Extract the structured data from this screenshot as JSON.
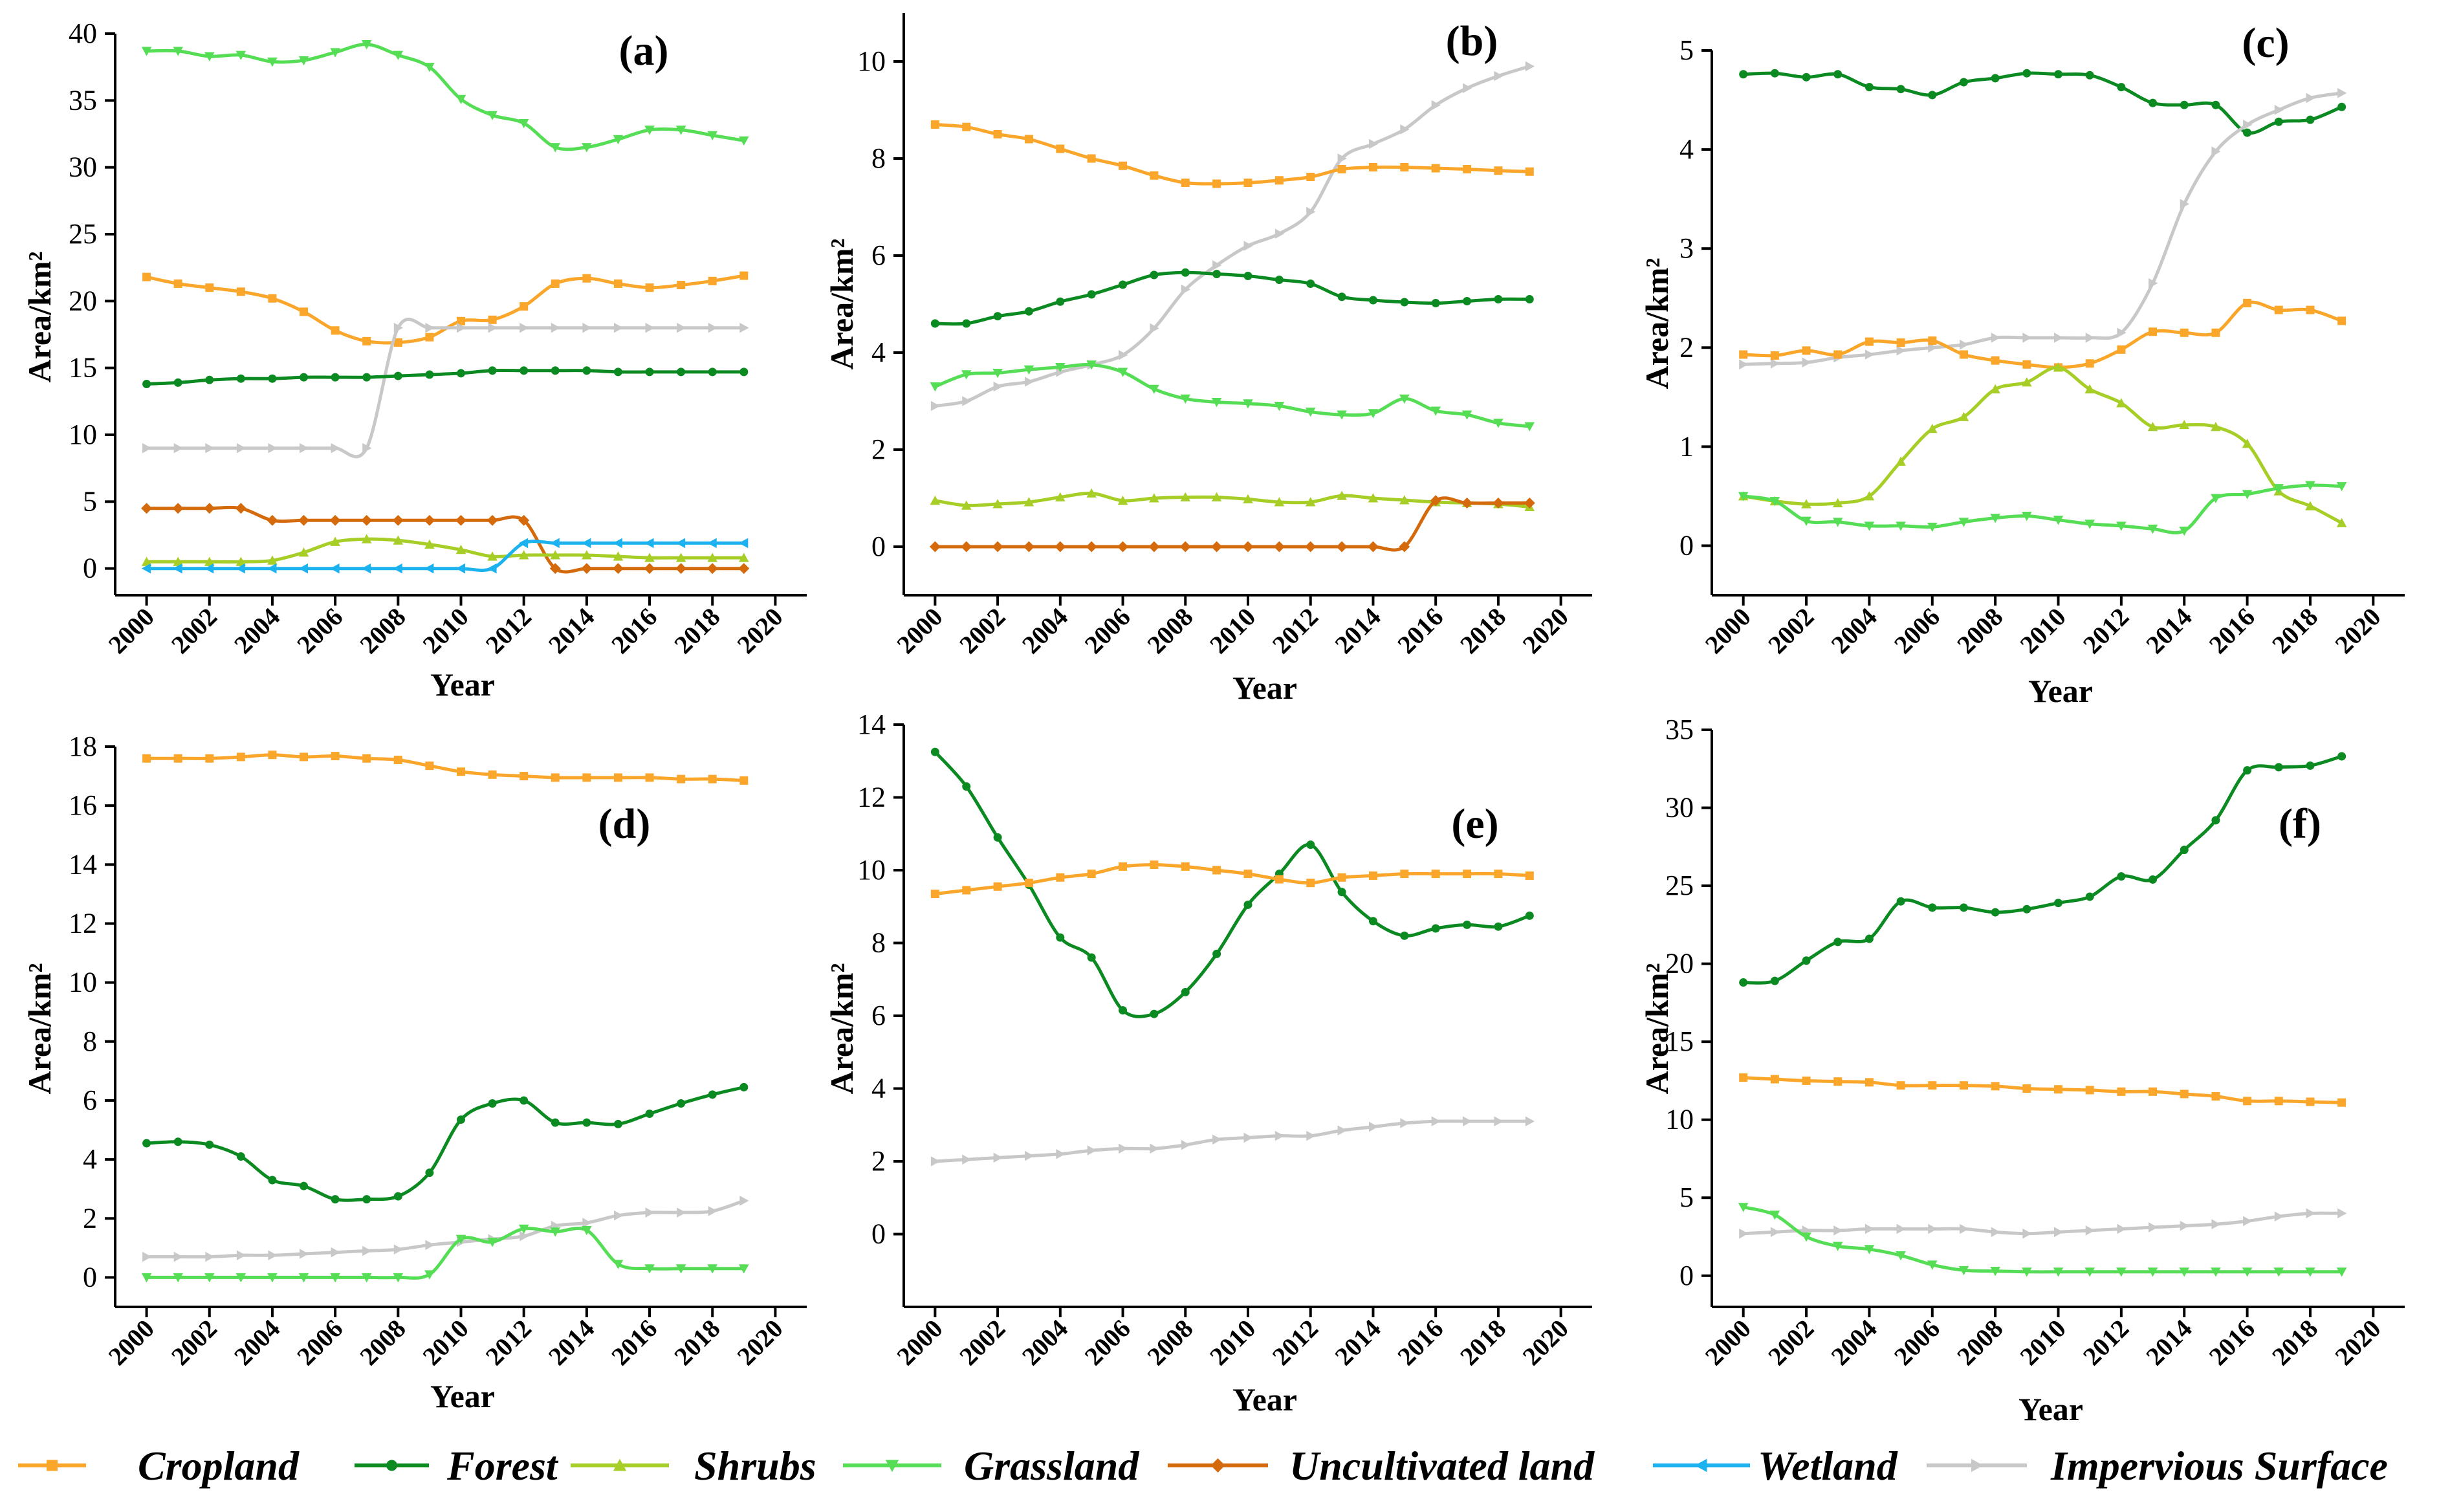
{
  "colors": {
    "Cropland": "#F9A62A",
    "Forest": "#0C8A22",
    "Shrubs": "#A7CE27",
    "Grassland": "#55DE55",
    "Uncultivated land": "#D46A0C",
    "Wetland": "#1CB2EF",
    "Impervious Surface": "#C8C8C8"
  },
  "legend": {
    "items": [
      "Cropland",
      "Forest",
      "Shrubs",
      "Grassland",
      "Uncultivated land",
      "Wetland",
      "Impervious Surface"
    ],
    "placement": "bottom"
  },
  "chart_data": [
    {
      "type": "line",
      "panel_label": "(a)",
      "xlabel": "Year",
      "ylabel": "Area/km²",
      "xlim": [
        1999,
        2021
      ],
      "ylim": [
        -2,
        40
      ],
      "xticks": [
        2000,
        2002,
        2004,
        2006,
        2008,
        2010,
        2012,
        2014,
        2016,
        2018,
        2020
      ],
      "yticks": [
        0,
        5,
        10,
        15,
        20,
        25,
        30,
        35,
        40
      ],
      "x": [
        2000,
        2001,
        2002,
        2003,
        2004,
        2005,
        2006,
        2007,
        2008,
        2009,
        2010,
        2011,
        2012,
        2013,
        2014,
        2015,
        2016,
        2017,
        2018,
        2019
      ],
      "series": [
        {
          "name": "Grassland",
          "values": [
            38.7,
            38.7,
            38.3,
            38.4,
            37.9,
            38.0,
            38.6,
            39.2,
            38.4,
            37.5,
            35.1,
            33.9,
            33.3,
            31.5,
            31.5,
            32.1,
            32.8,
            32.8,
            32.4,
            32.0
          ]
        },
        {
          "name": "Cropland",
          "values": [
            21.8,
            21.3,
            21.0,
            20.7,
            20.2,
            19.2,
            17.8,
            17.0,
            16.9,
            17.3,
            18.5,
            18.6,
            19.6,
            21.3,
            21.7,
            21.3,
            21.0,
            21.2,
            21.5,
            21.9
          ]
        },
        {
          "name": "Impervious Surface",
          "values": [
            9.0,
            9.0,
            9.0,
            9.0,
            9.0,
            9.0,
            9.0,
            9.0,
            18.0,
            18.0,
            18.0,
            18.0,
            18.0,
            18.0,
            18.0,
            18.0,
            18.0,
            18.0,
            18.0,
            18.0
          ]
        },
        {
          "name": "Forest",
          "values": [
            13.8,
            13.9,
            14.1,
            14.2,
            14.2,
            14.3,
            14.3,
            14.3,
            14.4,
            14.5,
            14.6,
            14.8,
            14.8,
            14.8,
            14.8,
            14.7,
            14.7,
            14.7,
            14.7,
            14.7
          ]
        },
        {
          "name": "Uncultivated land",
          "values": [
            4.5,
            4.5,
            4.5,
            4.5,
            3.6,
            3.6,
            3.6,
            3.6,
            3.6,
            3.6,
            3.6,
            3.6,
            3.6,
            0.0,
            0.0,
            0.0,
            0.0,
            0.0,
            0.0,
            0.0
          ]
        },
        {
          "name": "Shrubs",
          "values": [
            0.5,
            0.5,
            0.5,
            0.5,
            0.6,
            1.2,
            2.0,
            2.2,
            2.1,
            1.8,
            1.4,
            0.9,
            1.0,
            1.0,
            1.0,
            0.9,
            0.8,
            0.8,
            0.8,
            0.8
          ]
        },
        {
          "name": "Wetland",
          "values": [
            0.0,
            0.0,
            0.0,
            0.0,
            0.0,
            0.0,
            0.0,
            0.0,
            0.0,
            0.0,
            0.0,
            0.0,
            1.9,
            1.9,
            1.9,
            1.9,
            1.9,
            1.9,
            1.9,
            1.9
          ]
        }
      ]
    },
    {
      "type": "line",
      "panel_label": "(b)",
      "xlabel": "Year",
      "ylabel": "Area/km²",
      "xlim": [
        1999,
        2021
      ],
      "ylim": [
        -1,
        11
      ],
      "xticks": [
        2000,
        2002,
        2004,
        2006,
        2008,
        2010,
        2012,
        2014,
        2016,
        2018,
        2020
      ],
      "yticks": [
        0,
        2,
        4,
        6,
        8,
        10
      ],
      "x": [
        2000,
        2001,
        2002,
        2003,
        2004,
        2005,
        2006,
        2007,
        2008,
        2009,
        2010,
        2011,
        2012,
        2013,
        2014,
        2015,
        2016,
        2017,
        2018,
        2019
      ],
      "series": [
        {
          "name": "Impervious Surface",
          "values": [
            2.9,
            3.0,
            3.3,
            3.4,
            3.6,
            3.75,
            3.95,
            4.5,
            5.3,
            5.8,
            6.2,
            6.45,
            6.9,
            8.0,
            8.3,
            8.6,
            9.1,
            9.45,
            9.7,
            9.9
          ]
        },
        {
          "name": "Cropland",
          "values": [
            8.7,
            8.65,
            8.5,
            8.4,
            8.2,
            8.0,
            7.85,
            7.65,
            7.5,
            7.48,
            7.5,
            7.55,
            7.62,
            7.78,
            7.82,
            7.82,
            7.8,
            7.78,
            7.75,
            7.73
          ]
        },
        {
          "name": "Forest",
          "values": [
            4.6,
            4.6,
            4.75,
            4.85,
            5.05,
            5.2,
            5.4,
            5.6,
            5.65,
            5.62,
            5.58,
            5.5,
            5.42,
            5.15,
            5.08,
            5.04,
            5.02,
            5.06,
            5.1,
            5.1
          ]
        },
        {
          "name": "Grassland",
          "values": [
            3.3,
            3.55,
            3.58,
            3.65,
            3.7,
            3.75,
            3.6,
            3.25,
            3.05,
            2.98,
            2.95,
            2.9,
            2.78,
            2.72,
            2.75,
            3.05,
            2.8,
            2.72,
            2.55,
            2.48
          ]
        },
        {
          "name": "Shrubs",
          "values": [
            0.95,
            0.85,
            0.88,
            0.92,
            1.02,
            1.1,
            0.95,
            1.0,
            1.02,
            1.02,
            0.98,
            0.92,
            0.92,
            1.05,
            1.0,
            0.96,
            0.92,
            0.9,
            0.88,
            0.82
          ]
        },
        {
          "name": "Uncultivated land",
          "values": [
            0.0,
            0.0,
            0.0,
            0.0,
            0.0,
            0.0,
            0.0,
            0.0,
            0.0,
            0.0,
            0.0,
            0.0,
            0.0,
            0.0,
            0.0,
            0.0,
            0.95,
            0.9,
            0.9,
            0.9
          ]
        }
      ]
    },
    {
      "type": "line",
      "panel_label": "(c)",
      "xlabel": "Year",
      "ylabel": "Area/km²",
      "xlim": [
        1999,
        2021
      ],
      "ylim": [
        -0.5,
        5
      ],
      "xticks": [
        2000,
        2002,
        2004,
        2006,
        2008,
        2010,
        2012,
        2014,
        2016,
        2018,
        2020
      ],
      "yticks": [
        0,
        1,
        2,
        3,
        4,
        5
      ],
      "x": [
        2000,
        2001,
        2002,
        2003,
        2004,
        2005,
        2006,
        2007,
        2008,
        2009,
        2010,
        2011,
        2012,
        2013,
        2014,
        2015,
        2016,
        2017,
        2018,
        2019
      ],
      "series": [
        {
          "name": "Forest",
          "values": [
            4.76,
            4.77,
            4.73,
            4.76,
            4.63,
            4.61,
            4.55,
            4.68,
            4.72,
            4.77,
            4.76,
            4.75,
            4.63,
            4.47,
            4.45,
            4.45,
            4.17,
            4.28,
            4.3,
            4.43
          ]
        },
        {
          "name": "Impervious Surface",
          "values": [
            1.83,
            1.84,
            1.85,
            1.9,
            1.93,
            1.97,
            2.0,
            2.03,
            2.1,
            2.1,
            2.1,
            2.1,
            2.15,
            2.65,
            3.45,
            3.98,
            4.25,
            4.4,
            4.52,
            4.57
          ]
        },
        {
          "name": "Cropland",
          "values": [
            1.93,
            1.92,
            1.97,
            1.93,
            2.06,
            2.05,
            2.07,
            1.93,
            1.87,
            1.83,
            1.8,
            1.84,
            1.98,
            2.16,
            2.15,
            2.15,
            2.45,
            2.38,
            2.38,
            2.27
          ]
        },
        {
          "name": "Shrubs",
          "values": [
            0.5,
            0.45,
            0.42,
            0.43,
            0.5,
            0.85,
            1.18,
            1.3,
            1.58,
            1.65,
            1.8,
            1.58,
            1.44,
            1.2,
            1.22,
            1.2,
            1.03,
            0.55,
            0.4,
            0.23
          ]
        },
        {
          "name": "Grassland",
          "values": [
            0.5,
            0.45,
            0.25,
            0.24,
            0.2,
            0.2,
            0.19,
            0.24,
            0.28,
            0.3,
            0.26,
            0.22,
            0.2,
            0.17,
            0.15,
            0.48,
            0.52,
            0.58,
            0.61,
            0.6
          ]
        }
      ]
    },
    {
      "type": "line",
      "panel_label": "(d)",
      "xlabel": "Year",
      "ylabel": "Area/km²",
      "xlim": [
        1999,
        2021
      ],
      "ylim": [
        -1,
        18
      ],
      "xticks": [
        2000,
        2002,
        2004,
        2006,
        2008,
        2010,
        2012,
        2014,
        2016,
        2018,
        2020
      ],
      "yticks": [
        0,
        2,
        4,
        6,
        8,
        10,
        12,
        14,
        16,
        18
      ],
      "x": [
        2000,
        2001,
        2002,
        2003,
        2004,
        2005,
        2006,
        2007,
        2008,
        2009,
        2010,
        2011,
        2012,
        2013,
        2014,
        2015,
        2016,
        2017,
        2018,
        2019
      ],
      "series": [
        {
          "name": "Cropland",
          "values": [
            17.6,
            17.6,
            17.6,
            17.65,
            17.72,
            17.65,
            17.68,
            17.6,
            17.55,
            17.35,
            17.15,
            17.05,
            17.0,
            16.95,
            16.95,
            16.95,
            16.95,
            16.9,
            16.9,
            16.85
          ]
        },
        {
          "name": "Forest",
          "values": [
            4.55,
            4.6,
            4.5,
            4.1,
            3.3,
            3.1,
            2.65,
            2.65,
            2.75,
            3.55,
            5.35,
            5.9,
            6.0,
            5.25,
            5.25,
            5.2,
            5.55,
            5.9,
            6.2,
            6.45
          ]
        },
        {
          "name": "Impervious Surface",
          "values": [
            0.7,
            0.7,
            0.7,
            0.75,
            0.75,
            0.8,
            0.85,
            0.9,
            0.95,
            1.1,
            1.2,
            1.3,
            1.4,
            1.75,
            1.85,
            2.1,
            2.2,
            2.2,
            2.25,
            2.6
          ]
        },
        {
          "name": "Grassland",
          "values": [
            0.0,
            0.0,
            0.0,
            0.0,
            0.0,
            0.0,
            0.0,
            0.0,
            0.0,
            0.1,
            1.3,
            1.2,
            1.65,
            1.55,
            1.6,
            0.45,
            0.3,
            0.3,
            0.3,
            0.3
          ]
        }
      ]
    },
    {
      "type": "line",
      "panel_label": "(e)",
      "xlabel": "Year",
      "ylabel": "Area/km²",
      "xlim": [
        1999,
        2021
      ],
      "ylim": [
        -2,
        14
      ],
      "xticks": [
        2000,
        2002,
        2004,
        2006,
        2008,
        2010,
        2012,
        2014,
        2016,
        2018,
        2020
      ],
      "yticks": [
        0,
        2,
        4,
        6,
        8,
        10,
        12,
        14
      ],
      "x": [
        2000,
        2001,
        2002,
        2003,
        2004,
        2005,
        2006,
        2007,
        2008,
        2009,
        2010,
        2011,
        2012,
        2013,
        2014,
        2015,
        2016,
        2017,
        2018,
        2019
      ],
      "series": [
        {
          "name": "Forest",
          "values": [
            13.25,
            12.3,
            10.9,
            9.6,
            8.15,
            7.6,
            6.15,
            6.05,
            6.65,
            7.7,
            9.05,
            9.9,
            10.7,
            9.4,
            8.6,
            8.2,
            8.4,
            8.5,
            8.45,
            8.75
          ]
        },
        {
          "name": "Cropland",
          "values": [
            9.35,
            9.45,
            9.55,
            9.65,
            9.8,
            9.9,
            10.1,
            10.15,
            10.1,
            10.0,
            9.9,
            9.75,
            9.65,
            9.8,
            9.85,
            9.9,
            9.9,
            9.9,
            9.9,
            9.85
          ]
        },
        {
          "name": "Impervious Surface",
          "values": [
            2.0,
            2.05,
            2.1,
            2.15,
            2.2,
            2.3,
            2.35,
            2.35,
            2.45,
            2.6,
            2.65,
            2.7,
            2.7,
            2.85,
            2.95,
            3.05,
            3.1,
            3.1,
            3.1,
            3.1
          ]
        }
      ]
    },
    {
      "type": "line",
      "panel_label": "(f)",
      "xlabel": "Year",
      "ylabel": "Area/km²",
      "xlim": [
        1999,
        2021
      ],
      "ylim": [
        -2,
        35
      ],
      "xticks": [
        2000,
        2002,
        2004,
        2006,
        2008,
        2010,
        2012,
        2014,
        2016,
        2018,
        2020
      ],
      "yticks": [
        0,
        5,
        10,
        15,
        20,
        25,
        30,
        35
      ],
      "x": [
        2000,
        2001,
        2002,
        2003,
        2004,
        2005,
        2006,
        2007,
        2008,
        2009,
        2010,
        2011,
        2012,
        2013,
        2014,
        2015,
        2016,
        2017,
        2018,
        2019
      ],
      "series": [
        {
          "name": "Forest",
          "values": [
            18.8,
            18.9,
            20.2,
            21.4,
            21.6,
            24.0,
            23.6,
            23.6,
            23.3,
            23.5,
            23.9,
            24.3,
            25.6,
            25.4,
            27.3,
            29.2,
            32.4,
            32.6,
            32.7,
            33.3
          ]
        },
        {
          "name": "Cropland",
          "values": [
            12.7,
            12.6,
            12.5,
            12.45,
            12.4,
            12.2,
            12.2,
            12.2,
            12.15,
            12.0,
            11.95,
            11.9,
            11.8,
            11.8,
            11.65,
            11.5,
            11.2,
            11.2,
            11.15,
            11.1
          ]
        },
        {
          "name": "Impervious Surface",
          "values": [
            2.7,
            2.8,
            2.9,
            2.9,
            3.0,
            3.0,
            3.0,
            3.0,
            2.8,
            2.7,
            2.8,
            2.9,
            3.0,
            3.1,
            3.2,
            3.3,
            3.5,
            3.8,
            4.0,
            4.0
          ]
        },
        {
          "name": "Grassland",
          "values": [
            4.4,
            3.9,
            2.5,
            1.9,
            1.7,
            1.3,
            0.7,
            0.35,
            0.3,
            0.25,
            0.25,
            0.25,
            0.25,
            0.25,
            0.25,
            0.25,
            0.25,
            0.25,
            0.25,
            0.25
          ]
        }
      ]
    }
  ]
}
